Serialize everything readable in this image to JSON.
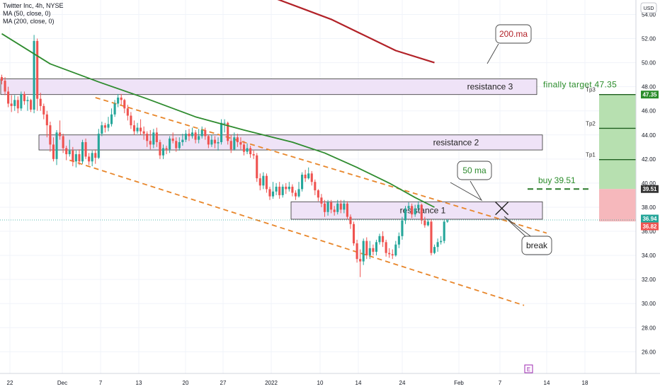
{
  "legend": {
    "symbol": "Twitter Inc, 4h, NYSE",
    "ma50": "MA (50, close, 0)",
    "ma200": "MA (200, close, 0)"
  },
  "currency": "USD",
  "colors": {
    "up": "#26a69a",
    "down": "#ef5350",
    "ma50": "#2e8b2e",
    "ma200": "#b22228",
    "trend": "#e8862a",
    "zone_fill": "#efe3f7",
    "zone_stroke": "#333333",
    "target_green": "#2a8c2a",
    "profit_fill": "#b7e0b0",
    "loss_fill": "#f6b8bc"
  },
  "chart_data": {
    "type": "candlestick",
    "title": "",
    "y_axis": {
      "ticks": [
        26.0,
        28.0,
        30.0,
        32.0,
        34.0,
        36.0,
        38.0,
        40.0,
        42.0,
        44.0,
        46.0,
        48.0,
        50.0,
        52.0,
        54.0
      ],
      "range": [
        24.2,
        55.2
      ],
      "side": "right"
    },
    "x_axis": {
      "ticks": [
        "22",
        "Dec",
        "7",
        "13",
        "20",
        "27",
        "2022",
        "10",
        "14",
        "24",
        "Feb",
        "7",
        "14",
        "18"
      ]
    },
    "price_labels": [
      {
        "text": "47.35",
        "value": 47.35,
        "color": "#2a8c2a"
      },
      {
        "text": "39.51",
        "value": 39.51,
        "color": "#333333"
      },
      {
        "text": "36.94",
        "value": 36.94,
        "color": "#26a69a"
      },
      {
        "text": "36.82",
        "value": 36.82,
        "color": "#ef5350"
      }
    ],
    "candles": [
      [
        48.8,
        48.5,
        49.0,
        48.2
      ],
      [
        48.5,
        47.6,
        48.8,
        47.3
      ],
      [
        47.6,
        46.6,
        48.0,
        46.3
      ],
      [
        46.6,
        46.4,
        47.3,
        45.9
      ],
      [
        46.4,
        46.9,
        47.3,
        46.0
      ],
      [
        46.9,
        46.2,
        47.2,
        45.8
      ],
      [
        46.2,
        47.4,
        47.6,
        46.0
      ],
      [
        47.4,
        46.8,
        47.6,
        46.5
      ],
      [
        46.8,
        46.9,
        47.2,
        46.0
      ],
      [
        46.9,
        46.1,
        47.0,
        45.9
      ],
      [
        46.1,
        51.8,
        52.3,
        45.8
      ],
      [
        51.8,
        47.0,
        52.0,
        46.0
      ],
      [
        47.0,
        46.4,
        47.5,
        46.0
      ],
      [
        46.4,
        45.7,
        46.6,
        45.3
      ],
      [
        45.7,
        44.8,
        46.0,
        43.8
      ],
      [
        44.8,
        43.2,
        45.1,
        42.6
      ],
      [
        43.2,
        42.0,
        43.8,
        41.8
      ],
      [
        42.0,
        44.2,
        44.4,
        41.5
      ],
      [
        44.2,
        43.9,
        45.2,
        43.6
      ],
      [
        43.9,
        42.9,
        44.1,
        42.5
      ],
      [
        42.9,
        42.4,
        43.1,
        41.9
      ],
      [
        42.4,
        42.7,
        43.6,
        42.2
      ],
      [
        42.7,
        41.8,
        43.0,
        41.4
      ],
      [
        41.8,
        42.4,
        42.7,
        41.3
      ],
      [
        42.4,
        41.8,
        42.8,
        41.5
      ],
      [
        41.8,
        43.4,
        43.6,
        41.6
      ],
      [
        43.4,
        42.2,
        43.7,
        42.0
      ],
      [
        42.2,
        41.8,
        42.5,
        41.5
      ],
      [
        41.8,
        42.5,
        42.7,
        41.4
      ],
      [
        42.5,
        42.1,
        42.8,
        41.6
      ],
      [
        42.1,
        44.1,
        44.5,
        42.0
      ],
      [
        44.1,
        44.8,
        45.1,
        43.9
      ],
      [
        44.8,
        44.6,
        45.0,
        44.2
      ],
      [
        44.6,
        44.9,
        45.5,
        44.3
      ],
      [
        44.9,
        45.7,
        46.2,
        44.7
      ],
      [
        45.7,
        46.6,
        46.9,
        45.5
      ],
      [
        46.6,
        47.1,
        47.4,
        46.3
      ],
      [
        47.1,
        46.9,
        47.4,
        46.5
      ],
      [
        46.9,
        46.2,
        47.0,
        45.8
      ],
      [
        46.2,
        45.6,
        46.5,
        45.2
      ],
      [
        45.6,
        44.8,
        45.9,
        44.5
      ],
      [
        44.8,
        44.3,
        45.2,
        44.0
      ],
      [
        44.3,
        44.6,
        45.0,
        44.1
      ],
      [
        44.6,
        44.3,
        45.3,
        44.0
      ],
      [
        44.3,
        44.1,
        44.7,
        43.6
      ],
      [
        44.1,
        43.5,
        44.3,
        43.0
      ],
      [
        43.5,
        43.2,
        44.4,
        42.8
      ],
      [
        43.2,
        44.2,
        44.5,
        42.9
      ],
      [
        44.2,
        43.4,
        44.6,
        43.0
      ],
      [
        43.4,
        42.3,
        43.6,
        42.0
      ],
      [
        42.3,
        42.9,
        43.2,
        42.0
      ],
      [
        42.9,
        42.8,
        43.1,
        42.4
      ],
      [
        42.8,
        43.7,
        43.9,
        42.5
      ],
      [
        43.7,
        43.5,
        44.2,
        43.3
      ],
      [
        43.5,
        42.9,
        43.8,
        42.6
      ],
      [
        42.9,
        43.4,
        43.8,
        42.7
      ],
      [
        43.4,
        43.6,
        44.1,
        43.1
      ],
      [
        43.6,
        44.1,
        44.4,
        43.4
      ],
      [
        44.1,
        43.9,
        44.5,
        43.5
      ],
      [
        43.9,
        44.2,
        44.6,
        43.7
      ],
      [
        44.2,
        43.6,
        44.4,
        43.3
      ],
      [
        43.6,
        43.9,
        44.5,
        43.3
      ],
      [
        43.9,
        44.4,
        44.7,
        43.7
      ],
      [
        44.4,
        43.9,
        44.6,
        43.6
      ],
      [
        43.9,
        43.2,
        44.0,
        42.9
      ],
      [
        43.2,
        43.6,
        44.0,
        43.0
      ],
      [
        43.6,
        43.3,
        43.9,
        42.9
      ],
      [
        43.3,
        43.4,
        43.8,
        42.7
      ],
      [
        43.4,
        45.0,
        45.3,
        43.2
      ],
      [
        45.0,
        45.0,
        45.3,
        44.2
      ],
      [
        45.0,
        43.5,
        45.1,
        43.2
      ],
      [
        43.5,
        42.8,
        44.0,
        42.5
      ],
      [
        42.8,
        43.8,
        44.2,
        42.7
      ],
      [
        43.8,
        43.4,
        44.1,
        43.0
      ],
      [
        43.4,
        43.2,
        43.8,
        42.8
      ],
      [
        43.2,
        42.6,
        43.5,
        42.3
      ],
      [
        42.6,
        42.9,
        43.3,
        42.4
      ],
      [
        42.9,
        42.4,
        43.1,
        42.1
      ],
      [
        42.4,
        42.3,
        42.7,
        42.0
      ],
      [
        42.3,
        40.4,
        42.5,
        40.1
      ],
      [
        40.4,
        39.8,
        40.8,
        39.4
      ],
      [
        39.8,
        40.6,
        40.9,
        39.5
      ],
      [
        40.6,
        39.5,
        40.8,
        39.2
      ],
      [
        39.5,
        38.9,
        39.7,
        38.6
      ],
      [
        38.9,
        39.3,
        40.1,
        38.7
      ],
      [
        39.3,
        39.7,
        40.0,
        39.0
      ],
      [
        39.7,
        39.0,
        40.1,
        38.7
      ],
      [
        39.0,
        39.7,
        39.9,
        38.8
      ],
      [
        39.7,
        39.5,
        40.0,
        39.1
      ],
      [
        39.5,
        39.7,
        40.1,
        39.3
      ],
      [
        39.7,
        39.2,
        39.9,
        38.9
      ],
      [
        39.2,
        38.9,
        39.4,
        38.6
      ],
      [
        38.9,
        39.5,
        40.1,
        38.8
      ],
      [
        39.5,
        40.7,
        40.9,
        39.3
      ],
      [
        40.7,
        40.4,
        41.1,
        40.1
      ],
      [
        40.4,
        40.8,
        41.3,
        40.3
      ],
      [
        40.8,
        40.1,
        41.0,
        39.8
      ],
      [
        40.1,
        39.4,
        40.3,
        39.0
      ],
      [
        39.4,
        38.8,
        39.5,
        38.5
      ],
      [
        38.8,
        38.3,
        39.1,
        38.0
      ],
      [
        38.3,
        37.6,
        38.6,
        37.2
      ],
      [
        37.6,
        38.4,
        38.6,
        37.3
      ],
      [
        38.4,
        37.8,
        38.6,
        37.5
      ],
      [
        37.8,
        37.6,
        38.1,
        37.3
      ],
      [
        37.6,
        38.3,
        38.6,
        37.4
      ],
      [
        38.3,
        37.8,
        38.6,
        37.5
      ],
      [
        37.8,
        38.3,
        38.6,
        37.5
      ],
      [
        38.3,
        37.2,
        38.5,
        37.0
      ],
      [
        37.2,
        36.6,
        37.4,
        36.2
      ],
      [
        36.6,
        35.0,
        36.8,
        34.8
      ],
      [
        35.0,
        33.7,
        35.3,
        33.4
      ],
      [
        33.7,
        33.5,
        34.5,
        32.2
      ],
      [
        33.5,
        35.2,
        35.4,
        33.2
      ],
      [
        35.2,
        34.0,
        35.5,
        33.7
      ],
      [
        34.0,
        34.6,
        35.2,
        33.7
      ],
      [
        34.6,
        34.3,
        34.9,
        34.0
      ],
      [
        34.3,
        35.1,
        35.3,
        34.0
      ],
      [
        35.1,
        35.6,
        35.8,
        34.9
      ],
      [
        35.6,
        35.1,
        36.0,
        34.7
      ],
      [
        35.1,
        34.2,
        35.3,
        33.9
      ],
      [
        34.2,
        34.1,
        34.6,
        33.8
      ],
      [
        34.1,
        34.0,
        34.5,
        33.7
      ],
      [
        34.0,
        34.9,
        35.2,
        33.9
      ],
      [
        34.9,
        35.6,
        35.9,
        34.6
      ],
      [
        35.6,
        36.9,
        37.2,
        35.3
      ],
      [
        36.9,
        37.9,
        38.1,
        36.6
      ],
      [
        37.9,
        38.1,
        38.4,
        37.7
      ],
      [
        38.1,
        37.4,
        38.3,
        37.1
      ],
      [
        37.4,
        37.9,
        38.2,
        37.2
      ],
      [
        37.9,
        38.2,
        38.5,
        37.7
      ],
      [
        38.2,
        36.9,
        38.3,
        36.6
      ],
      [
        36.9,
        36.5,
        37.2,
        36.3
      ],
      [
        36.5,
        36.8,
        37.0,
        36.4
      ],
      [
        36.8,
        34.2,
        37.0,
        34.0
      ],
      [
        34.2,
        34.7,
        34.9,
        34.1
      ],
      [
        34.7,
        35.1,
        35.4,
        34.3
      ],
      [
        35.1,
        35.2,
        35.6,
        34.9
      ],
      [
        35.2,
        36.8,
        37.0,
        35.0
      ],
      [
        36.8,
        36.9,
        37.0,
        36.7
      ]
    ],
    "ma50": [
      [
        0,
        52.4
      ],
      [
        15,
        49.9
      ],
      [
        30,
        48.4
      ],
      [
        45,
        47.0
      ],
      [
        60,
        45.5
      ],
      [
        75,
        44.4
      ],
      [
        90,
        43.4
      ],
      [
        100,
        42.5
      ],
      [
        110,
        41.3
      ],
      [
        120,
        40.0
      ],
      [
        128,
        38.8
      ],
      [
        134,
        38.0
      ]
    ],
    "ma200": [
      [
        83,
        55.5
      ],
      [
        92,
        54.6
      ],
      [
        102,
        53.6
      ],
      [
        112,
        52.3
      ],
      [
        122,
        51.0
      ],
      [
        134,
        50.0
      ]
    ],
    "trendlines": [
      {
        "from": [
          29,
          47.1
        ],
        "to": [
          149,
          36.7
        ]
      },
      {
        "from": [
          21,
          41.9
        ],
        "to": [
          142,
          30.7
        ]
      }
    ],
    "zones": [
      {
        "label": "resistance 3",
        "low": 47.35,
        "high": 48.65,
        "from": -1,
        "to": 147
      },
      {
        "label": "resistance 2",
        "low": 42.75,
        "high": 44.0,
        "from": 10,
        "to": 147
      },
      {
        "label": "resistance 1",
        "low": 37.0,
        "high": 38.45,
        "from": 79,
        "to": 147
      }
    ],
    "annotations": [
      {
        "text": "200.ma",
        "anchor": [
          134,
          50.0
        ]
      },
      {
        "text": "50 ma",
        "anchor": [
          130,
          38.6
        ]
      },
      {
        "text": "break",
        "anchor": [
          136,
          37.3
        ]
      },
      {
        "text": "finally target 47.35",
        "value": 47.35
      },
      {
        "text": "buy  39.51",
        "value": 39.51
      }
    ],
    "position": {
      "entry": 39.51,
      "stop": 36.82,
      "targets": [
        {
          "label": "Tp1",
          "value": 41.95
        },
        {
          "label": "Tp2",
          "value": 44.55
        },
        {
          "label": "Tp3",
          "value": 47.35
        }
      ]
    },
    "break_marker": {
      "label": "X",
      "at": [
        136,
        37.9
      ]
    },
    "event_marker": "E"
  }
}
